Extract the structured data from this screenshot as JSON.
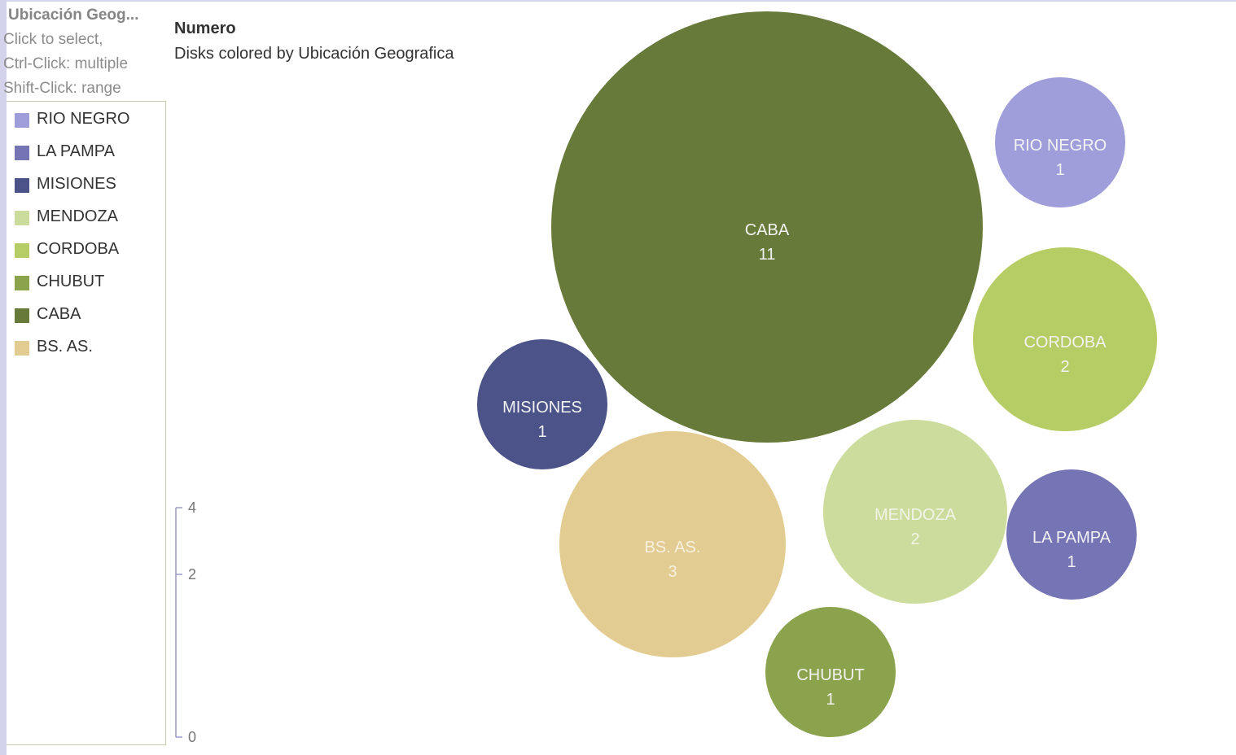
{
  "legend": {
    "title": "Ubicación Geog...",
    "help": [
      "Click to select,",
      "Ctrl-Click: multiple",
      "Shift-Click: range"
    ],
    "items": [
      {
        "label": "RIO NEGRO",
        "color": "#9f9edb"
      },
      {
        "label": "LA PAMPA",
        "color": "#7574b5"
      },
      {
        "label": "MISIONES",
        "color": "#4b5388"
      },
      {
        "label": "MENDOZA",
        "color": "#ccdc9c"
      },
      {
        "label": "CORDOBA",
        "color": "#b6cc64"
      },
      {
        "label": "CHUBUT",
        "color": "#8aa34c"
      },
      {
        "label": "CABA",
        "color": "#677a39"
      },
      {
        "label": "BS. AS.",
        "color": "#e3cc91"
      }
    ]
  },
  "chart": {
    "title": "Numero",
    "subtitle": "Disks colored by Ubicación Geografica"
  },
  "chart_data": {
    "type": "bubble",
    "title": "Numero",
    "subtitle": "Disks colored by Ubicación Geografica",
    "color_by": "Ubicación Geografica",
    "size_axis_ticks": [
      "4",
      "2",
      "0"
    ],
    "series": [
      {
        "name": "CABA",
        "value": 11,
        "color": "#677a39",
        "label_color": "#f2f2f2"
      },
      {
        "name": "RIO NEGRO",
        "value": 1,
        "color": "#9f9edb",
        "label_color": "#f2f2f2"
      },
      {
        "name": "CORDOBA",
        "value": 2,
        "color": "#b6cc64",
        "label_color": "#f2f2f2"
      },
      {
        "name": "MISIONES",
        "value": 1,
        "color": "#4b5388",
        "label_color": "#f2f2f2"
      },
      {
        "name": "BS. AS.",
        "value": 3,
        "color": "#e3cc91",
        "label_color": "#f6f0e0"
      },
      {
        "name": "MENDOZA",
        "value": 2,
        "color": "#ccdc9c",
        "label_color": "#f2f4e8"
      },
      {
        "name": "LA PAMPA",
        "value": 1,
        "color": "#7574b5",
        "label_color": "#f2f2f2"
      },
      {
        "name": "CHUBUT",
        "value": 1,
        "color": "#8aa34c",
        "label_color": "#f2f2f2"
      }
    ]
  }
}
